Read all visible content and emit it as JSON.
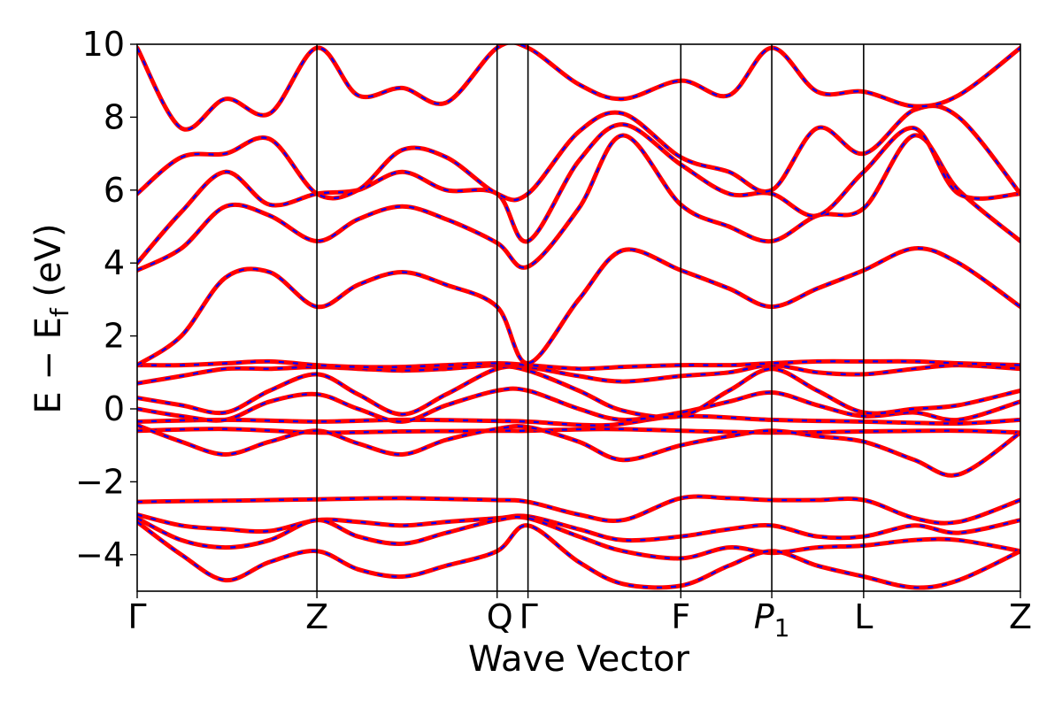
{
  "chart_data": {
    "type": "line",
    "xlabel": "Wave Vector",
    "ylabel_main": "E − E",
    "ylabel_sub": "f",
    "ylabel_unit": " (eV)",
    "ylim": [
      -5,
      10
    ],
    "y_ticks": [
      -4,
      -2,
      0,
      2,
      4,
      6,
      8,
      10
    ],
    "y_tick_labels": [
      "−4",
      "−2",
      "0",
      "2",
      "4",
      "6",
      "8",
      "10"
    ],
    "k_points": [
      {
        "label": "Γ",
        "sub": "",
        "x": 0.0
      },
      {
        "label": "Z",
        "sub": "",
        "x": 0.2035
      },
      {
        "label": "Q",
        "sub": "",
        "x": 0.4075
      },
      {
        "label": "Γ",
        "sub": "",
        "x": 0.4425
      },
      {
        "label": "F",
        "sub": "",
        "x": 0.6155
      },
      {
        "label": "P",
        "sub": "1",
        "x": 0.7185
      },
      {
        "label": "L",
        "sub": "",
        "x": 0.8225
      },
      {
        "label": "Z",
        "sub": "",
        "x": 1.0
      }
    ],
    "grid": false,
    "legend": "none",
    "series_style": [
      {
        "color": "#ff0000",
        "style": "solid"
      },
      {
        "color": "#0000ff",
        "style": "dashed"
      }
    ],
    "bands": [
      {
        "x": [
          0,
          0.05,
          0.1,
          0.15,
          0.2035,
          0.25,
          0.3,
          0.35,
          0.4075,
          0.4425,
          0.5,
          0.55,
          0.6155,
          0.67,
          0.7185,
          0.77,
          0.8225,
          0.88,
          0.93,
          1.0
        ],
        "y": [
          -2.55,
          -2.53,
          -2.52,
          -2.5,
          -2.48,
          -2.46,
          -2.45,
          -2.47,
          -2.5,
          -2.55,
          -2.9,
          -3.05,
          -2.45,
          -2.45,
          -2.5,
          -2.5,
          -2.5,
          -3.0,
          -3.1,
          -2.5
        ]
      },
      {
        "x": [
          0,
          0.05,
          0.1,
          0.15,
          0.2035,
          0.25,
          0.3,
          0.35,
          0.4075,
          0.4425,
          0.5,
          0.55,
          0.6155,
          0.67,
          0.7185,
          0.77,
          0.8225,
          0.88,
          0.93,
          1.0
        ],
        "y": [
          -2.9,
          -3.2,
          -3.3,
          -3.35,
          -3.05,
          -3.1,
          -3.2,
          -3.1,
          -3.0,
          -2.95,
          -3.3,
          -3.6,
          -3.5,
          -3.3,
          -3.2,
          -3.5,
          -3.5,
          -3.2,
          -3.4,
          -3.05
        ]
      },
      {
        "x": [
          0,
          0.05,
          0.1,
          0.15,
          0.2035,
          0.25,
          0.3,
          0.35,
          0.4075,
          0.4425,
          0.5,
          0.55,
          0.6155,
          0.67,
          0.7185,
          0.77,
          0.8225,
          0.88,
          0.93,
          1.0
        ],
        "y": [
          -3.0,
          -3.6,
          -3.8,
          -3.6,
          -3.05,
          -3.5,
          -3.7,
          -3.4,
          -3.05,
          -3.0,
          -3.5,
          -3.9,
          -4.1,
          -3.8,
          -3.95,
          -3.8,
          -3.75,
          -3.6,
          -3.6,
          -3.9
        ]
      },
      {
        "x": [
          0,
          0.05,
          0.1,
          0.15,
          0.2035,
          0.25,
          0.3,
          0.35,
          0.4075,
          0.4425,
          0.5,
          0.55,
          0.6155,
          0.67,
          0.7185,
          0.77,
          0.8225,
          0.88,
          0.93,
          1.0
        ],
        "y": [
          -3.1,
          -4.0,
          -4.7,
          -4.2,
          -3.9,
          -4.4,
          -4.6,
          -4.3,
          -3.9,
          -3.2,
          -4.2,
          -4.8,
          -4.85,
          -4.3,
          -3.9,
          -4.3,
          -4.6,
          -4.9,
          -4.7,
          -3.9
        ]
      },
      {
        "x": [
          0,
          0.1,
          0.2035,
          0.3,
          0.4075,
          0.4425,
          0.53,
          0.6155,
          0.7185,
          0.8225,
          0.93,
          1.0
        ],
        "y": [
          -0.6,
          -0.55,
          -0.65,
          -0.62,
          -0.6,
          -0.6,
          -0.55,
          -0.6,
          -0.65,
          -0.62,
          -0.6,
          -0.65
        ]
      },
      {
        "x": [
          0,
          0.05,
          0.1,
          0.15,
          0.2035,
          0.25,
          0.3,
          0.35,
          0.4075,
          0.4425,
          0.5,
          0.55,
          0.6155,
          0.67,
          0.7185,
          0.77,
          0.8225,
          0.88,
          0.93,
          1.0
        ],
        "y": [
          -0.45,
          -0.9,
          -1.25,
          -0.9,
          -0.6,
          -0.95,
          -1.25,
          -0.85,
          -0.55,
          -0.5,
          -0.9,
          -1.4,
          -1.0,
          -0.75,
          -0.6,
          -0.75,
          -0.9,
          -1.4,
          -1.8,
          -0.65
        ]
      },
      {
        "x": [
          0,
          0.1,
          0.2035,
          0.3,
          0.4075,
          0.4425,
          0.53,
          0.6155,
          0.7185,
          0.8225,
          0.93,
          1.0
        ],
        "y": [
          -0.35,
          -0.3,
          -0.35,
          -0.3,
          -0.33,
          -0.35,
          -0.45,
          -0.2,
          -0.3,
          -0.35,
          -0.4,
          -0.3
        ]
      },
      {
        "x": [
          0,
          0.05,
          0.1,
          0.15,
          0.2035,
          0.25,
          0.3,
          0.35,
          0.4075,
          0.4425,
          0.5,
          0.55,
          0.6155,
          0.67,
          0.7185,
          0.77,
          0.8225,
          0.88,
          0.93,
          1.0
        ],
        "y": [
          0.0,
          -0.2,
          -0.3,
          0.2,
          0.4,
          0.0,
          -0.35,
          0.1,
          0.5,
          0.5,
          0.0,
          -0.3,
          -0.1,
          0.2,
          0.45,
          0.1,
          -0.2,
          -0.1,
          -0.3,
          0.2
        ]
      },
      {
        "x": [
          0,
          0.05,
          0.1,
          0.15,
          0.2035,
          0.25,
          0.3,
          0.35,
          0.4075,
          0.4425,
          0.5,
          0.55,
          0.6155,
          0.67,
          0.7185,
          0.77,
          0.8225,
          0.88,
          0.93,
          1.0
        ],
        "y": [
          0.3,
          0.1,
          -0.1,
          0.5,
          0.95,
          0.4,
          -0.15,
          0.4,
          1.1,
          1.05,
          0.5,
          -0.05,
          -0.2,
          0.5,
          1.1,
          0.5,
          -0.1,
          0.0,
          0.1,
          0.5
        ]
      },
      {
        "x": [
          0,
          0.05,
          0.1,
          0.15,
          0.2035,
          0.25,
          0.3,
          0.35,
          0.4075,
          0.4425,
          0.5,
          0.55,
          0.6155,
          0.67,
          0.7185,
          0.77,
          0.8225,
          0.88,
          0.93,
          1.0
        ],
        "y": [
          0.7,
          0.9,
          1.1,
          1.1,
          1.15,
          1.1,
          1.05,
          1.1,
          1.2,
          1.15,
          0.9,
          0.75,
          0.9,
          1.0,
          1.2,
          1.0,
          0.95,
          1.1,
          1.2,
          1.1
        ]
      },
      {
        "x": [
          0,
          0.05,
          0.1,
          0.15,
          0.2035,
          0.25,
          0.3,
          0.35,
          0.4075,
          0.4425,
          0.5,
          0.55,
          0.6155,
          0.67,
          0.7185,
          0.77,
          0.8225,
          0.88,
          0.93,
          1.0
        ],
        "y": [
          1.2,
          1.2,
          1.25,
          1.3,
          1.2,
          1.15,
          1.15,
          1.2,
          1.25,
          1.2,
          1.1,
          1.15,
          1.2,
          1.2,
          1.25,
          1.3,
          1.3,
          1.3,
          1.25,
          1.2
        ]
      },
      {
        "x": [
          0,
          0.05,
          0.1,
          0.15,
          0.2035,
          0.25,
          0.3,
          0.35,
          0.4075,
          0.4425,
          0.5,
          0.55,
          0.6155,
          0.67,
          0.7185,
          0.77,
          0.8225,
          0.88,
          0.93,
          1.0
        ],
        "y": [
          1.2,
          2.0,
          3.6,
          3.75,
          2.8,
          3.4,
          3.75,
          3.4,
          2.8,
          1.25,
          3.0,
          4.35,
          3.8,
          3.3,
          2.8,
          3.3,
          3.8,
          4.4,
          4.0,
          2.8
        ]
      },
      {
        "x": [
          0,
          0.05,
          0.1,
          0.15,
          0.2035,
          0.25,
          0.3,
          0.35,
          0.4075,
          0.4425,
          0.5,
          0.55,
          0.6155,
          0.67,
          0.7185,
          0.77,
          0.8225,
          0.88,
          0.93,
          1.0
        ],
        "y": [
          3.8,
          4.4,
          5.55,
          5.3,
          4.6,
          5.2,
          5.55,
          5.2,
          4.55,
          3.9,
          5.5,
          7.5,
          5.6,
          5.0,
          4.6,
          5.3,
          5.5,
          7.5,
          6.0,
          4.6
        ]
      },
      {
        "x": [
          0,
          0.05,
          0.1,
          0.15,
          0.2035,
          0.25,
          0.3,
          0.35,
          0.4075,
          0.4425,
          0.5,
          0.55,
          0.6155,
          0.67,
          0.7185,
          0.77,
          0.8225,
          0.88,
          0.93,
          1.0
        ],
        "y": [
          4.0,
          5.4,
          6.5,
          5.6,
          5.9,
          6.0,
          6.5,
          6.0,
          5.9,
          4.6,
          6.8,
          7.8,
          6.7,
          5.9,
          5.9,
          5.3,
          6.5,
          7.7,
          5.9,
          5.9
        ]
      },
      {
        "x": [
          0,
          0.05,
          0.1,
          0.15,
          0.2035,
          0.25,
          0.3,
          0.35,
          0.4075,
          0.4425,
          0.5,
          0.55,
          0.6155,
          0.67,
          0.7185,
          0.77,
          0.8225,
          0.88,
          0.93,
          1.0
        ],
        "y": [
          5.9,
          6.9,
          7.0,
          7.4,
          5.9,
          6.0,
          7.1,
          6.9,
          5.9,
          5.9,
          7.6,
          8.1,
          6.9,
          6.5,
          6.0,
          7.7,
          7.0,
          8.2,
          8.0,
          5.9
        ]
      },
      {
        "x": [
          0,
          0.05,
          0.1,
          0.15,
          0.2035,
          0.25,
          0.3,
          0.35,
          0.4075,
          0.4425,
          0.5,
          0.55,
          0.6155,
          0.67,
          0.7185,
          0.77,
          0.8225,
          0.88,
          0.93,
          1.0
        ],
        "y": [
          9.9,
          7.7,
          8.5,
          8.1,
          9.9,
          8.6,
          8.8,
          8.4,
          9.9,
          9.9,
          8.9,
          8.5,
          9.0,
          8.6,
          9.9,
          8.7,
          8.7,
          8.3,
          8.6,
          9.9
        ]
      }
    ]
  }
}
